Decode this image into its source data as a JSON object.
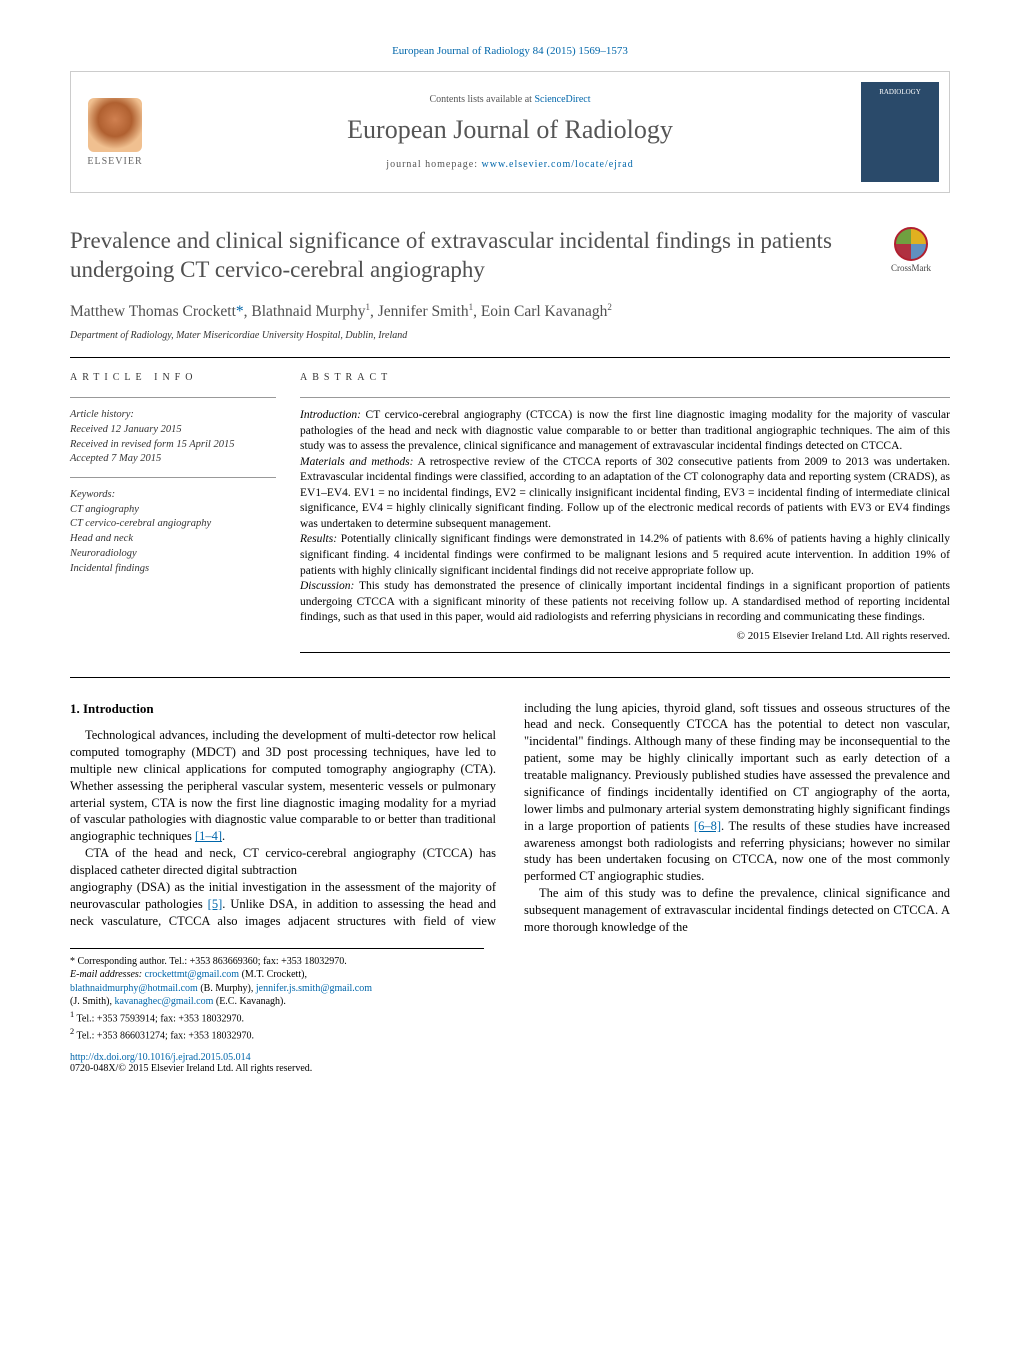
{
  "journal_ref": "European Journal of Radiology 84 (2015) 1569–1573",
  "header": {
    "publisher": "ELSEVIER",
    "contents_prefix": "Contents lists available at ",
    "contents_link": "ScienceDirect",
    "journal_title": "European Journal of Radiology",
    "homepage_prefix": "journal homepage: ",
    "homepage_url": "www.elsevier.com/locate/ejrad",
    "cover_label": "RADIOLOGY"
  },
  "crossmark": "CrossMark",
  "title": "Prevalence and clinical significance of extravascular incidental findings in patients undergoing CT cervico-cerebral angiography",
  "authors_html": "Matthew Thomas Crockett<span class='author-link'>*</span>, Blathnaid Murphy<sup>1</sup>, Jennifer Smith<sup>1</sup>, Eoin Carl Kavanagh<sup>2</sup>",
  "affiliation": "Department of Radiology, Mater Misericordiae University Hospital, Dublin, Ireland",
  "article_info": {
    "label": "article info",
    "history_head": "Article history:",
    "received": "Received 12 January 2015",
    "revised": "Received in revised form 15 April 2015",
    "accepted": "Accepted 7 May 2015",
    "keywords_head": "Keywords:",
    "keywords": [
      "CT angiography",
      "CT cervico-cerebral angiography",
      "Head and neck",
      "Neuroradiology",
      "Incidental findings"
    ]
  },
  "abstract": {
    "label": "abstract",
    "intro_head": "Introduction:",
    "intro": " CT cervico-cerebral angiography (CTCCA) is now the first line diagnostic imaging modality for the majority of vascular pathologies of the head and neck with diagnostic value comparable to or better than traditional angiographic techniques. The aim of this study was to assess the prevalence, clinical significance and management of extravascular incidental findings detected on CTCCA.",
    "methods_head": "Materials and methods:",
    "methods": " A retrospective review of the CTCCA reports of 302 consecutive patients from 2009 to 2013 was undertaken. Extravascular incidental findings were classified, according to an adaptation of the CT colonography data and reporting system (CRADS), as EV1–EV4. EV1 = no incidental findings, EV2 = clinically insignificant incidental finding, EV3 = incidental finding of intermediate clinical significance, EV4 = highly clinically significant finding. Follow up of the electronic medical records of patients with EV3 or EV4 findings was undertaken to determine subsequent management.",
    "results_head": "Results:",
    "results": " Potentially clinically significant findings were demonstrated in 14.2% of patients with 8.6% of patients having a highly clinically significant finding. 4 incidental findings were confirmed to be malignant lesions and 5 required acute intervention. In addition 19% of patients with highly clinically significant incidental findings did not receive appropriate follow up.",
    "discussion_head": "Discussion:",
    "discussion": " This study has demonstrated the presence of clinically important incidental findings in a significant proportion of patients undergoing CTCCA with a significant minority of these patients not receiving follow up. A standardised method of reporting incidental findings, such as that used in this paper, would aid radiologists and referring physicians in recording and communicating these findings.",
    "copyright": "© 2015 Elsevier Ireland Ltd. All rights reserved."
  },
  "body": {
    "h_intro": "1.  Introduction",
    "p1": "Technological advances, including the development of multi-detector row helical computed tomography (MDCT) and 3D post processing techniques, have led to multiple new clinical applications for computed tomography angiography (CTA). Whether assessing the peripheral vascular system, mesenteric vessels or pulmonary arterial system, CTA is now the first line diagnostic imaging modality for a myriad of vascular pathologies with diagnostic value comparable to or better than traditional angiographic techniques ",
    "p1_ref": "[1–4]",
    "p1_end": ".",
    "p2": "CTA of the head and neck, CT cervico-cerebral angiography (CTCCA) has displaced catheter directed digital subtraction",
    "p3a": "angiography (DSA) as the initial investigation in the assessment of the majority of neurovascular pathologies ",
    "p3_ref": "[5]",
    "p3b": ". Unlike DSA, in addition to assessing the head and neck vasculature, CTCCA also images adjacent structures with field of view including the lung apicies, thyroid gland, soft tissues and osseous structures of the head and neck. Consequently CTCCA has the potential to detect non vascular, \"incidental\" findings. Although many of these finding may be inconsequential to the patient, some may be highly clinically important such as early detection of a treatable malignancy. Previously published studies have assessed the prevalence and significance of findings incidentally identified on CT angiography of the aorta, lower limbs and pulmonary arterial system demonstrating highly significant findings in a large proportion of patients ",
    "p3_ref2": "[6–8]",
    "p3c": ". The results of these studies have increased awareness amongst both radiologists and referring physicians; however no similar study has been undertaken focusing on CTCCA, now one of the most commonly performed CT angiographic studies.",
    "p4": "The aim of this study was to define the prevalence, clinical significance and subsequent management of extravascular incidental findings detected on CTCCA. A more thorough knowledge of the"
  },
  "footnotes": {
    "corr": "* Corresponding author. Tel.: +353 863669360; fax: +353 18032970.",
    "emails_label": "E-mail addresses: ",
    "email1": "crockettmt@gmail.com",
    "email1_who": " (M.T. Crockett),",
    "email2": "blathnaidmurphy@hotmail.com",
    "email2_who": " (B. Murphy), ",
    "email3": "jennifer.js.smith@gmail.com",
    "email3_who": " (J. Smith), ",
    "email4": "kavanaghec@gmail.com",
    "email4_who": " (E.C. Kavanagh).",
    "fn1": "Tel.: +353 7593914; fax: +353 18032970.",
    "fn2": "Tel.: +353 866031274; fax: +353 18032970."
  },
  "doi": "http://dx.doi.org/10.1016/j.ejrad.2015.05.014",
  "issn": "0720-048X/© 2015 Elsevier Ireland Ltd. All rights reserved.",
  "colors": {
    "link": "#0066aa",
    "title_gray": "#505050",
    "rule": "#000000"
  }
}
